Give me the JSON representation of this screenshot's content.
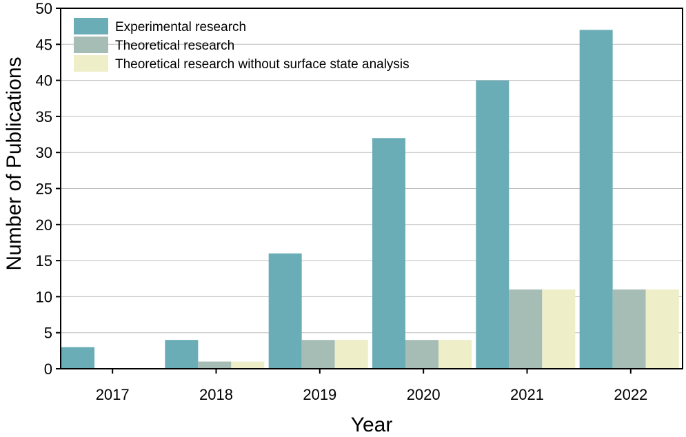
{
  "chart_data": {
    "type": "bar",
    "title": "",
    "xlabel": "Year",
    "ylabel": "Number of Publications",
    "categories": [
      "2017",
      "2018",
      "2019",
      "2020",
      "2021",
      "2022"
    ],
    "ylim": [
      0,
      50
    ],
    "yticks": [
      "0",
      "5",
      "10",
      "15",
      "20",
      "25",
      "30",
      "35",
      "40",
      "45",
      "50"
    ],
    "grid": true,
    "legend_position": "top-left",
    "series": [
      {
        "name": "Experimental research",
        "color": "#6aadb6",
        "values": [
          3,
          4,
          16,
          32,
          40,
          47
        ]
      },
      {
        "name": "Theoretical research",
        "color": "#a6bdb5",
        "values": [
          0,
          1,
          4,
          4,
          11,
          11
        ]
      },
      {
        "name": "Theoretical research without surface state analysis",
        "color": "#eeeec8",
        "values": [
          0,
          1,
          4,
          4,
          11,
          11
        ]
      }
    ]
  }
}
